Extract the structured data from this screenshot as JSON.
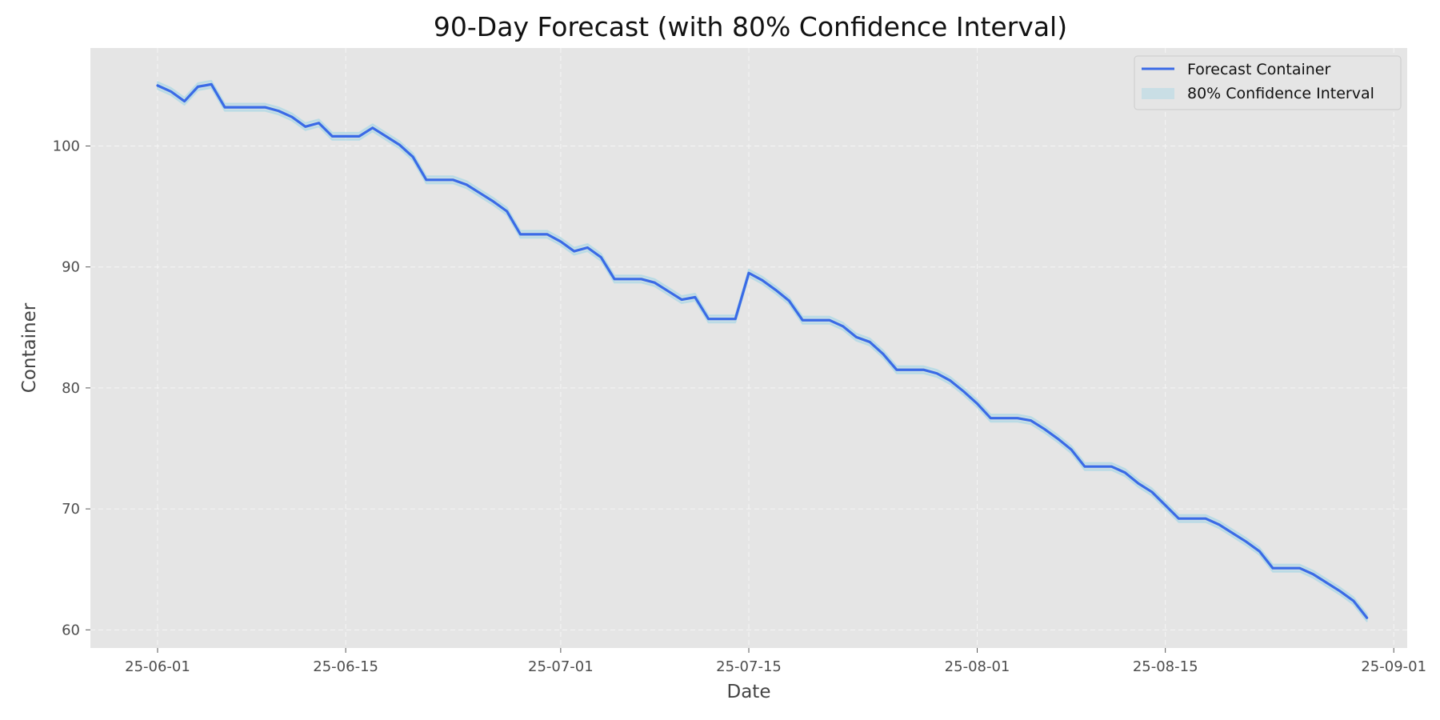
{
  "chart_data": {
    "type": "line",
    "title": "90-Day Forecast (with 80% Confidence Interval)",
    "xlabel": "Date",
    "ylabel": "Container",
    "grid": true,
    "legend_position": "top-right",
    "xlim": [
      "2025-05-27",
      "2025-09-02"
    ],
    "ylim": [
      58.5,
      108.1
    ],
    "x_ticks": [
      {
        "date": "2025-06-01",
        "label": "25-06-01"
      },
      {
        "date": "2025-06-15",
        "label": "25-06-15"
      },
      {
        "date": "2025-07-01",
        "label": "25-07-01"
      },
      {
        "date": "2025-07-15",
        "label": "25-07-15"
      },
      {
        "date": "2025-08-01",
        "label": "25-08-01"
      },
      {
        "date": "2025-08-15",
        "label": "25-08-15"
      },
      {
        "date": "2025-09-01",
        "label": "25-09-01"
      }
    ],
    "y_ticks": [
      60,
      70,
      80,
      90,
      100
    ],
    "colors": {
      "background": "#e5e5e5",
      "grid": "#f5f5f5",
      "line": "#3a6ae6",
      "band": "#add8e6"
    },
    "series": [
      {
        "name": "Forecast Container",
        "kind": "line",
        "points": [
          [
            "2025-06-01",
            105.0
          ],
          [
            "2025-06-02",
            104.5
          ],
          [
            "2025-06-03",
            103.7
          ],
          [
            "2025-06-04",
            104.9
          ],
          [
            "2025-06-05",
            105.1
          ],
          [
            "2025-06-06",
            103.2
          ],
          [
            "2025-06-07",
            103.2
          ],
          [
            "2025-06-08",
            103.2
          ],
          [
            "2025-06-09",
            103.2
          ],
          [
            "2025-06-10",
            102.9
          ],
          [
            "2025-06-11",
            102.4
          ],
          [
            "2025-06-12",
            101.6
          ],
          [
            "2025-06-13",
            101.9
          ],
          [
            "2025-06-14",
            100.8
          ],
          [
            "2025-06-15",
            100.8
          ],
          [
            "2025-06-16",
            100.8
          ],
          [
            "2025-06-17",
            101.5
          ],
          [
            "2025-06-18",
            100.8
          ],
          [
            "2025-06-19",
            100.1
          ],
          [
            "2025-06-20",
            99.1
          ],
          [
            "2025-06-21",
            97.2
          ],
          [
            "2025-06-22",
            97.2
          ],
          [
            "2025-06-23",
            97.2
          ],
          [
            "2025-06-24",
            96.8
          ],
          [
            "2025-06-25",
            96.1
          ],
          [
            "2025-06-26",
            95.4
          ],
          [
            "2025-06-27",
            94.6
          ],
          [
            "2025-06-28",
            92.7
          ],
          [
            "2025-06-29",
            92.7
          ],
          [
            "2025-06-30",
            92.7
          ],
          [
            "2025-07-01",
            92.1
          ],
          [
            "2025-07-02",
            91.3
          ],
          [
            "2025-07-03",
            91.6
          ],
          [
            "2025-07-04",
            90.8
          ],
          [
            "2025-07-05",
            89.0
          ],
          [
            "2025-07-06",
            89.0
          ],
          [
            "2025-07-07",
            89.0
          ],
          [
            "2025-07-08",
            88.7
          ],
          [
            "2025-07-09",
            88.0
          ],
          [
            "2025-07-10",
            87.3
          ],
          [
            "2025-07-11",
            87.5
          ],
          [
            "2025-07-12",
            85.7
          ],
          [
            "2025-07-13",
            85.7
          ],
          [
            "2025-07-14",
            85.7
          ],
          [
            "2025-07-15",
            89.5
          ],
          [
            "2025-07-16",
            88.9
          ],
          [
            "2025-07-17",
            88.1
          ],
          [
            "2025-07-18",
            87.2
          ],
          [
            "2025-07-19",
            85.6
          ],
          [
            "2025-07-20",
            85.6
          ],
          [
            "2025-07-21",
            85.6
          ],
          [
            "2025-07-22",
            85.1
          ],
          [
            "2025-07-23",
            84.2
          ],
          [
            "2025-07-24",
            83.8
          ],
          [
            "2025-07-25",
            82.8
          ],
          [
            "2025-07-26",
            81.5
          ],
          [
            "2025-07-27",
            81.5
          ],
          [
            "2025-07-28",
            81.5
          ],
          [
            "2025-07-29",
            81.2
          ],
          [
            "2025-07-30",
            80.6
          ],
          [
            "2025-07-31",
            79.7
          ],
          [
            "2025-08-01",
            78.7
          ],
          [
            "2025-08-02",
            77.5
          ],
          [
            "2025-08-03",
            77.5
          ],
          [
            "2025-08-04",
            77.5
          ],
          [
            "2025-08-05",
            77.3
          ],
          [
            "2025-08-06",
            76.6
          ],
          [
            "2025-08-07",
            75.8
          ],
          [
            "2025-08-08",
            74.9
          ],
          [
            "2025-08-09",
            73.5
          ],
          [
            "2025-08-10",
            73.5
          ],
          [
            "2025-08-11",
            73.5
          ],
          [
            "2025-08-12",
            73.0
          ],
          [
            "2025-08-13",
            72.1
          ],
          [
            "2025-08-14",
            71.4
          ],
          [
            "2025-08-15",
            70.3
          ],
          [
            "2025-08-16",
            69.2
          ],
          [
            "2025-08-17",
            69.2
          ],
          [
            "2025-08-18",
            69.2
          ],
          [
            "2025-08-19",
            68.7
          ],
          [
            "2025-08-20",
            68.0
          ],
          [
            "2025-08-21",
            67.3
          ],
          [
            "2025-08-22",
            66.5
          ],
          [
            "2025-08-23",
            65.1
          ],
          [
            "2025-08-24",
            65.1
          ],
          [
            "2025-08-25",
            65.1
          ],
          [
            "2025-08-26",
            64.6
          ],
          [
            "2025-08-27",
            63.9
          ],
          [
            "2025-08-28",
            63.2
          ],
          [
            "2025-08-29",
            62.4
          ],
          [
            "2025-08-30",
            61.0
          ]
        ]
      },
      {
        "name": "80% Confidence Interval",
        "kind": "band",
        "half_width": 0.3
      }
    ]
  }
}
